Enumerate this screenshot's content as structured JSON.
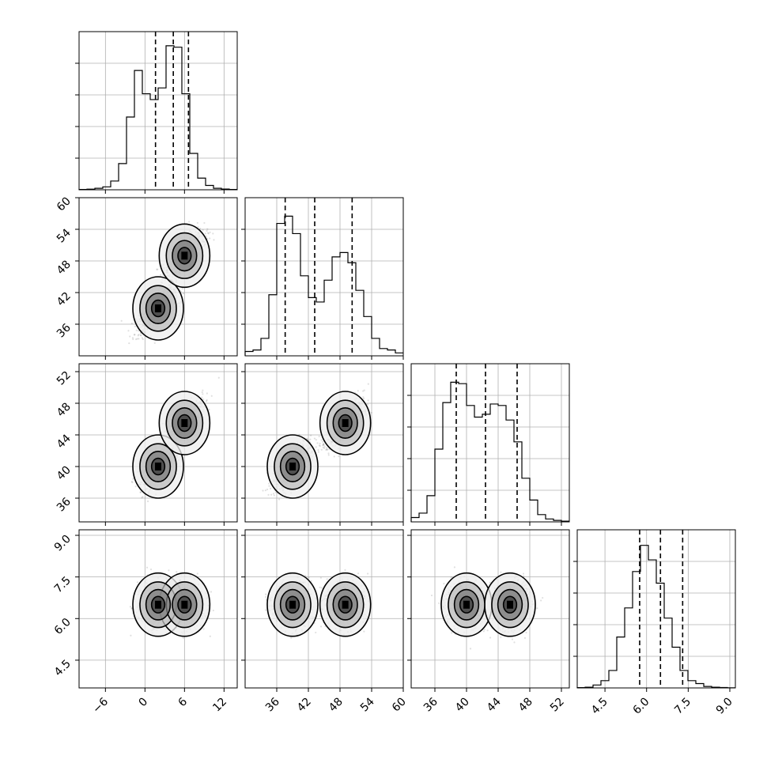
{
  "chart_data": {
    "type": "corner",
    "grid": true,
    "parameters": [
      {
        "id": "p1",
        "range": [
          -10,
          14
        ],
        "ticks": [
          -6,
          0,
          6,
          12
        ],
        "tick_labels": [
          "−6",
          "0",
          "6",
          "12"
        ],
        "quantiles": [
          1.6,
          4.3,
          6.6
        ],
        "hist": [
          0.002,
          0.004,
          0.01,
          0.02,
          0.06,
          0.18,
          0.5,
          0.82,
          0.66,
          0.62,
          0.7,
          0.99,
          0.98,
          0.66,
          0.25,
          0.08,
          0.03,
          0.01,
          0.005,
          0.002
        ],
        "modes": [
          2.0,
          6.0
        ]
      },
      {
        "id": "p2",
        "range": [
          30,
          60
        ],
        "ticks": [
          36,
          42,
          48,
          54,
          60
        ],
        "tick_labels": [
          "36",
          "42",
          "48",
          "54",
          "60"
        ],
        "quantiles": [
          37.6,
          43.2,
          50.3
        ],
        "hist": [
          0.03,
          0.04,
          0.12,
          0.42,
          0.91,
          0.96,
          0.84,
          0.55,
          0.4,
          0.37,
          0.52,
          0.68,
          0.71,
          0.64,
          0.45,
          0.27,
          0.12,
          0.05,
          0.04,
          0.02
        ],
        "modes": [
          39,
          49
        ]
      },
      {
        "id": "p3",
        "range": [
          33,
          53
        ],
        "ticks": [
          36,
          40,
          44,
          48,
          52
        ],
        "tick_labels": [
          "36",
          "40",
          "44",
          "48",
          "52"
        ],
        "quantiles": [
          38.7,
          42.4,
          46.4
        ],
        "hist": [
          0.03,
          0.06,
          0.18,
          0.5,
          0.82,
          0.96,
          0.95,
          0.8,
          0.72,
          0.74,
          0.81,
          0.8,
          0.7,
          0.55,
          0.3,
          0.15,
          0.05,
          0.02,
          0.01,
          0.005
        ],
        "modes": [
          40,
          45.5
        ]
      },
      {
        "id": "p4",
        "range": [
          3.5,
          9.2
        ],
        "ticks": [
          4.5,
          6.0,
          7.5,
          9.0
        ],
        "tick_labels": [
          "4.5",
          "6.0",
          "7.5",
          "9.0"
        ],
        "quantiles": [
          5.75,
          6.5,
          7.3
        ],
        "hist": [
          0.002,
          0.005,
          0.02,
          0.05,
          0.12,
          0.35,
          0.55,
          0.8,
          0.98,
          0.88,
          0.72,
          0.48,
          0.28,
          0.12,
          0.05,
          0.03,
          0.01,
          0.005,
          0.003,
          0.001
        ],
        "modes": [
          6.5,
          6.5
        ]
      }
    ]
  }
}
